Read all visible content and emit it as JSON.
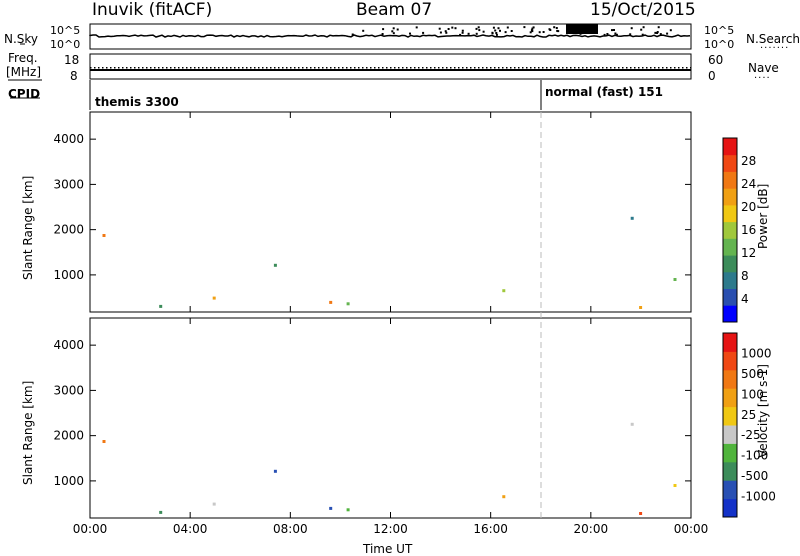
{
  "header": {
    "station": "Inuvik (fitACF)",
    "beam": "Beam 07",
    "date": "15/Oct/2015"
  },
  "top_panels": {
    "nsky_label": "N.Sky",
    "nsky_ticks": [
      "10^5",
      "10^0"
    ],
    "nsearch_label": "N.Search",
    "nsearch_ticks": [
      "10^5",
      "10^0"
    ],
    "freq_label": "Freq.",
    "freq_unit": "[MHz]",
    "freq_ticks": [
      "18",
      "8"
    ],
    "nave_label": "Nave",
    "nave_ticks": [
      "60",
      "0"
    ],
    "cpid_label": "CPID",
    "cpid_modes": [
      {
        "text": "themis 3300",
        "start_hour": 0
      },
      {
        "text": "normal (fast) 151",
        "start_hour": 18
      }
    ]
  },
  "chart_data": [
    {
      "type": "heatmap",
      "name": "power",
      "ylabel": "Slant Range [km]",
      "xlabel": "",
      "x_range_hours": [
        0,
        24
      ],
      "ylim": [
        180,
        4600
      ],
      "y_ticks": [
        1000,
        2000,
        3000,
        4000
      ],
      "colorbar_label": "Power [dB]",
      "colorbar_ticks": [
        "4",
        "8",
        "12",
        "16",
        "20",
        "24",
        "28"
      ],
      "colorbar_range": [
        0,
        32
      ],
      "colorbar_colors": [
        "#0000ff",
        "#2a4fb0",
        "#2d7a8c",
        "#3c8c5a",
        "#64b450",
        "#a0c83c",
        "#f0c814",
        "#f0a014",
        "#f07814",
        "#f04814",
        "#e61414"
      ]
    },
    {
      "type": "heatmap",
      "name": "velocity",
      "ylabel": "Slant Range [km]",
      "xlabel": "Time UT",
      "x_range_hours": [
        0,
        24
      ],
      "x_ticks": [
        "00:00",
        "04:00",
        "08:00",
        "12:00",
        "16:00",
        "20:00",
        "00:00"
      ],
      "ylim": [
        180,
        4600
      ],
      "y_ticks": [
        1000,
        2000,
        3000,
        4000
      ],
      "colorbar_label": "Velocity [m s-1]",
      "colorbar_ticks": [
        "1000",
        "500",
        "100",
        "25",
        "-25",
        "-100",
        "-500",
        "-1000"
      ],
      "colorbar_colors": [
        "#1432c8",
        "#2850b4",
        "#3c8c5a",
        "#50b43c",
        "#c8c8c8",
        "#f0c814",
        "#f0a014",
        "#f07814",
        "#f04814",
        "#e61414"
      ]
    }
  ]
}
